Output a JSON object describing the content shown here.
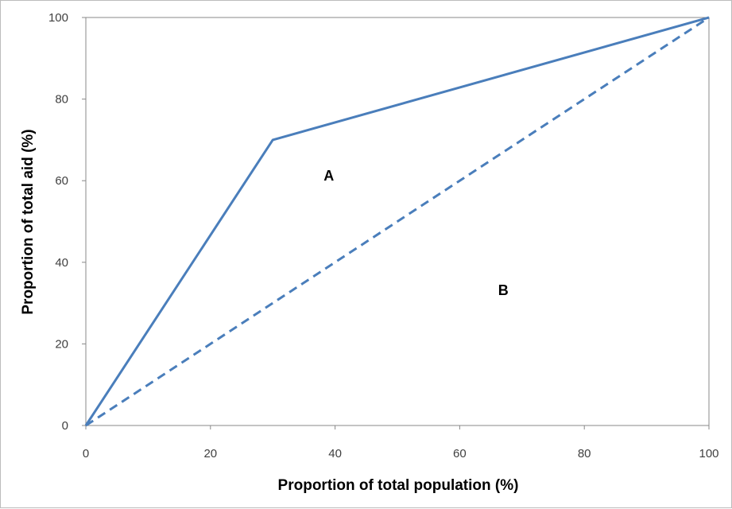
{
  "chart_data": {
    "type": "line",
    "title": "",
    "xlabel": "Proportion of total population (%)",
    "ylabel": "Proportion of total aid (%)",
    "xlim": [
      0,
      100
    ],
    "ylim": [
      0,
      100
    ],
    "x_ticks": [
      0,
      20,
      40,
      60,
      80,
      100
    ],
    "y_ticks": [
      0,
      20,
      40,
      60,
      80,
      100
    ],
    "grid": false,
    "series": [
      {
        "style": "solid",
        "color": "#4a7ebb",
        "x": [
          0,
          30,
          100
        ],
        "y": [
          0,
          70,
          100
        ]
      },
      {
        "style": "dashed",
        "color": "#4a7ebb",
        "x": [
          0,
          100
        ],
        "y": [
          0,
          100
        ]
      }
    ],
    "annotations": [
      {
        "text": "A",
        "x": 39,
        "y": 60
      },
      {
        "text": "B",
        "x": 67,
        "y": 32
      }
    ]
  }
}
